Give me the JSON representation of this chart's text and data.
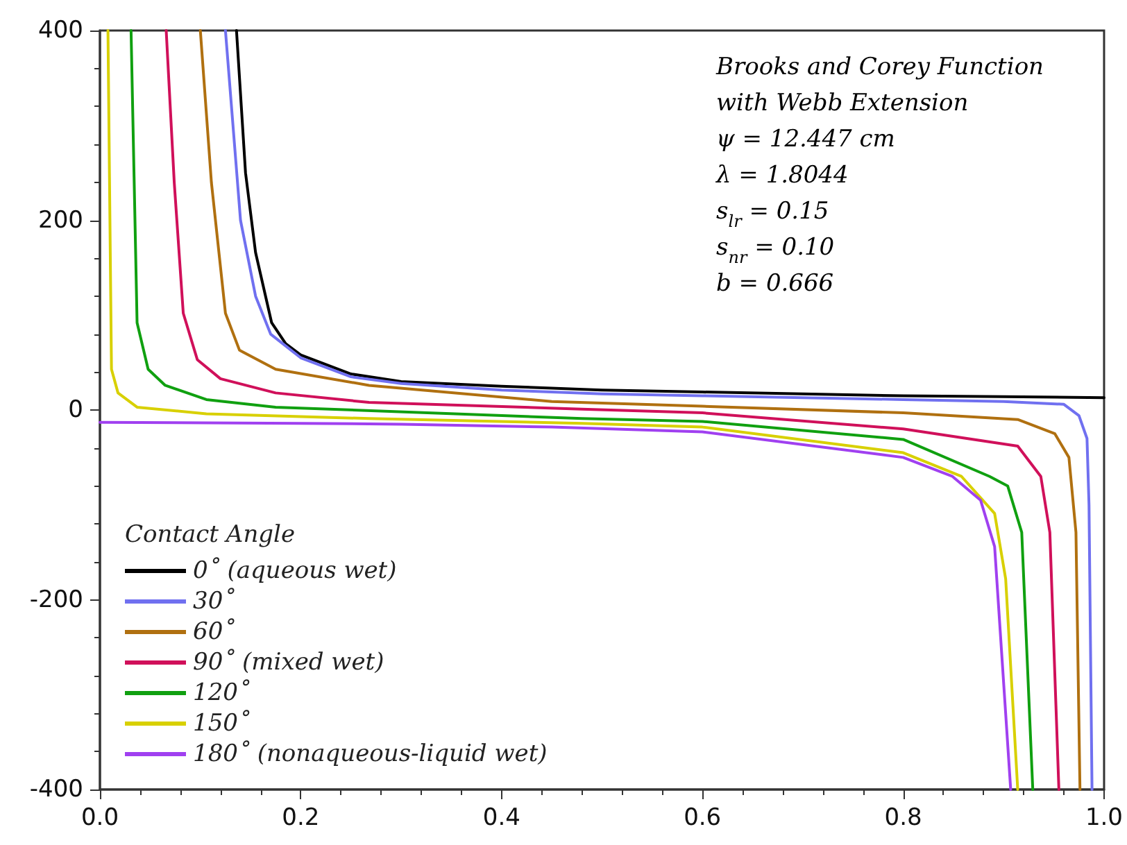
{
  "chart_data": {
    "type": "line",
    "legend_title": "Contact Angle",
    "legend": "bottom left",
    "grid": false,
    "marker": "none",
    "line_style": "solid",
    "annotations": [
      "Brooks and Corey Function",
      "with Webb Extension",
      "ψ = 12.447 cm",
      "λ = 1.8044",
      "s$_{lr}$ = 0.15",
      "s$_{nr}$ = 0.10",
      "b = 0.666"
    ],
    "xlim": [
      0,
      1
    ],
    "xticks": [
      {
        "value": 0,
        "label": "0.0"
      },
      {
        "value": 0.2,
        "label": "0.2"
      },
      {
        "value": 0.4,
        "label": "0.4"
      },
      {
        "value": 0.6,
        "label": "0.6"
      },
      {
        "value": 0.8,
        "label": "0.8"
      },
      {
        "value": 1,
        "label": "1.0"
      }
    ],
    "ylim": [
      -400,
      400
    ],
    "yticks": [
      -400,
      -200,
      0,
      200,
      400
    ],
    "series": [
      {
        "name": "0˚ (aqueous wet)",
        "color": "#000000",
        "x": [
          0.136,
          0.145,
          0.155,
          0.171,
          0.185,
          0.2,
          0.25,
          0.3,
          0.4,
          0.5,
          0.6,
          0.7,
          0.8,
          0.9,
          1.0
        ],
        "values": [
          400,
          250,
          166,
          92,
          70,
          58,
          38,
          30,
          25,
          21,
          19,
          17,
          15,
          14,
          13
        ]
      },
      {
        "name": "30˚",
        "color": "#7070f0",
        "x": [
          0.125,
          0.14,
          0.155,
          0.17,
          0.2,
          0.25,
          0.3,
          0.4,
          0.5,
          0.6,
          0.7,
          0.8,
          0.9,
          0.96,
          0.975,
          0.983,
          0.985,
          0.988
        ],
        "values": [
          400,
          200,
          120,
          80,
          55,
          35,
          28,
          21,
          17,
          15,
          13,
          11,
          9,
          6,
          -6,
          -30,
          -100,
          -400
        ]
      },
      {
        "name": "60˚",
        "color": "#b07010",
        "x": [
          0.1,
          0.111,
          0.125,
          0.139,
          0.175,
          0.268,
          0.45,
          0.6,
          0.8,
          0.914,
          0.951,
          0.965,
          0.972,
          0.976
        ],
        "values": [
          400,
          240,
          102,
          63,
          43,
          26,
          9,
          4,
          -3,
          -10,
          -25,
          -50,
          -129,
          -400
        ]
      },
      {
        "name": "90˚ (mixed wet)",
        "color": "#d0105a",
        "x": [
          0.066,
          0.074,
          0.083,
          0.097,
          0.12,
          0.175,
          0.268,
          0.48,
          0.6,
          0.8,
          0.914,
          0.937,
          0.946,
          0.955
        ],
        "values": [
          400,
          240,
          102,
          53,
          33,
          18,
          8,
          1,
          -3,
          -20,
          -38,
          -70,
          -129,
          -400
        ]
      },
      {
        "name": "120˚",
        "color": "#10a010",
        "x": [
          0.031,
          0.037,
          0.048,
          0.065,
          0.106,
          0.175,
          0.48,
          0.6,
          0.8,
          0.886,
          0.904,
          0.918,
          0.929
        ],
        "values": [
          400,
          92,
          43,
          26,
          11,
          3,
          -9,
          -12,
          -31,
          -70,
          -80,
          -129,
          -400
        ]
      },
      {
        "name": "150˚",
        "color": "#d8d000",
        "x": [
          0.008,
          0.0115,
          0.018,
          0.037,
          0.106,
          0.268,
          0.48,
          0.6,
          0.8,
          0.858,
          0.891,
          0.902,
          0.914
        ],
        "values": [
          400,
          43,
          18,
          3,
          -4,
          -9,
          -14,
          -18,
          -45,
          -70,
          -109,
          -178,
          -400
        ]
      },
      {
        "name": "180˚ (nonaqueous-liquid wet)",
        "color": "#a040f0",
        "x": [
          0,
          0.2,
          0.3,
          0.45,
          0.6,
          0.8,
          0.849,
          0.877,
          0.891,
          0.907
        ],
        "values": [
          -13,
          -14,
          -15,
          -18,
          -23,
          -50,
          -70,
          -95,
          -144,
          -400
        ]
      }
    ]
  }
}
